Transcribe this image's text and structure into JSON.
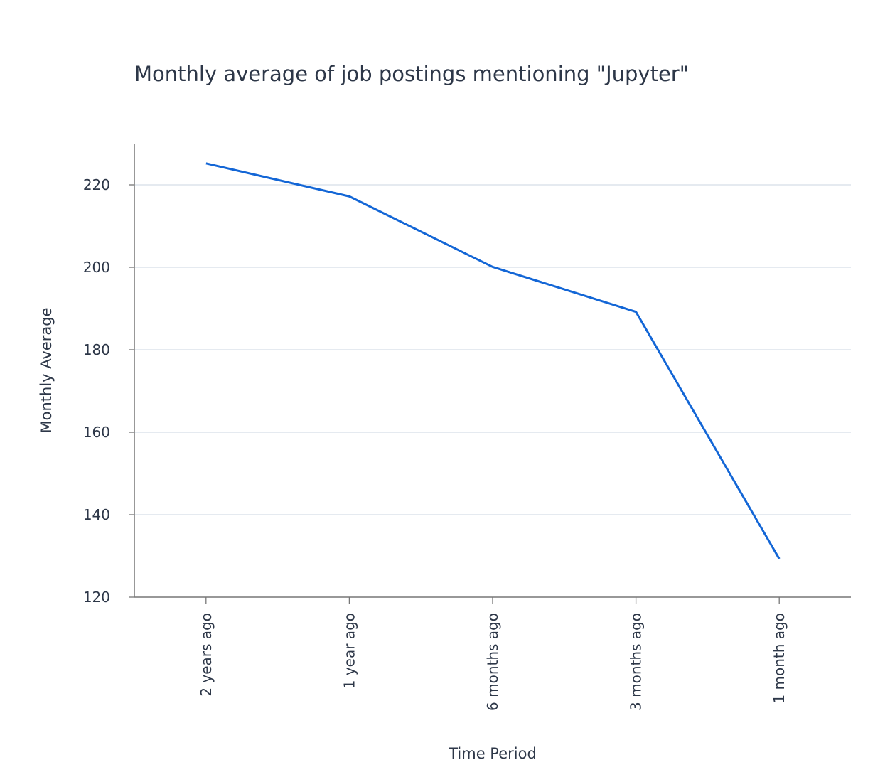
{
  "chart_data": {
    "type": "line",
    "title": "Monthly average of job postings mentioning \"Jupyter\"",
    "xlabel": "Time Period",
    "ylabel": "Monthly Average",
    "categories": [
      "2 years ago",
      "1 year ago",
      "6 months ago",
      "3 months ago",
      "1 month ago"
    ],
    "values": [
      225.2,
      217.2,
      200.1,
      189.2,
      129.3
    ],
    "ylim": [
      120,
      230
    ],
    "yticks": [
      120,
      140,
      160,
      180,
      200,
      220
    ],
    "grid": "horizontal",
    "colors": {
      "line": "#1366d6",
      "grid": "#d5dee8",
      "axis": "#777777",
      "text": "#2d3748"
    }
  }
}
